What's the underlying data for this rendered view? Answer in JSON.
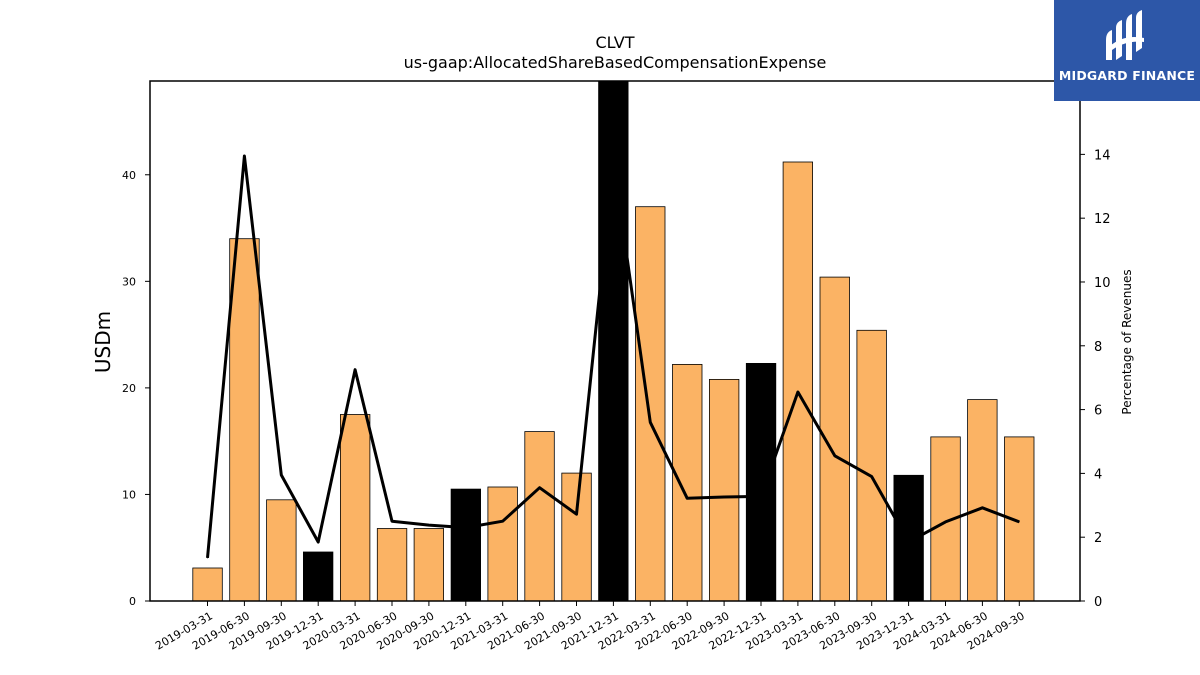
{
  "chart_data": {
    "type": "bar",
    "title": "CLVT",
    "subtitle": "us-gaap:AllocatedShareBasedCompensationExpense",
    "ylabel": "USDm",
    "y2label": "Percentage of Revenues",
    "ylim": [
      0,
      48.8
    ],
    "y2lim": [
      0,
      16.3
    ],
    "yticks": [
      0,
      10,
      20,
      30,
      40
    ],
    "y2ticks": [
      0,
      2,
      4,
      6,
      8,
      10,
      12,
      14,
      16
    ],
    "categories": [
      "2019-03-31",
      "2019-06-30",
      "2019-09-30",
      "2019-12-31",
      "2020-03-31",
      "2020-06-30",
      "2020-09-30",
      "2020-12-31",
      "2021-03-31",
      "2021-06-30",
      "2021-09-30",
      "2021-12-31",
      "2022-03-31",
      "2022-06-30",
      "2022-09-30",
      "2022-12-31",
      "2023-03-31",
      "2023-06-30",
      "2023-09-30",
      "2023-12-31",
      "2024-03-31",
      "2024-06-30",
      "2024-09-30"
    ],
    "series": [
      {
        "values": [
          3.1,
          34.0,
          9.5,
          4.6,
          17.5,
          6.8,
          6.8,
          10.5,
          10.7,
          15.9,
          12.0,
          48.8,
          37.0,
          22.2,
          20.8,
          22.3,
          41.2,
          30.4,
          25.4,
          11.8,
          15.4,
          18.9,
          15.4
        ]
      },
      {
        "values": [
          1.35,
          13.95,
          3.95,
          1.85,
          7.25,
          2.5,
          2.38,
          2.3,
          2.5,
          3.55,
          2.72,
          13.8,
          5.6,
          3.22,
          3.26,
          3.28,
          6.55,
          4.55,
          3.9,
          1.85,
          2.48,
          2.92,
          2.48
        ]
      }
    ],
    "bar_colors": {
      "quarter": "#fbb364",
      "year_end": "#000000"
    },
    "year_end_flags": [
      false,
      false,
      false,
      true,
      false,
      false,
      false,
      true,
      false,
      false,
      false,
      true,
      false,
      false,
      false,
      true,
      false,
      false,
      false,
      true,
      false,
      false,
      false
    ],
    "line_color": "#000000"
  },
  "logo": {
    "text": "MIDGARD FINANCE",
    "background": "#2d57a8"
  }
}
